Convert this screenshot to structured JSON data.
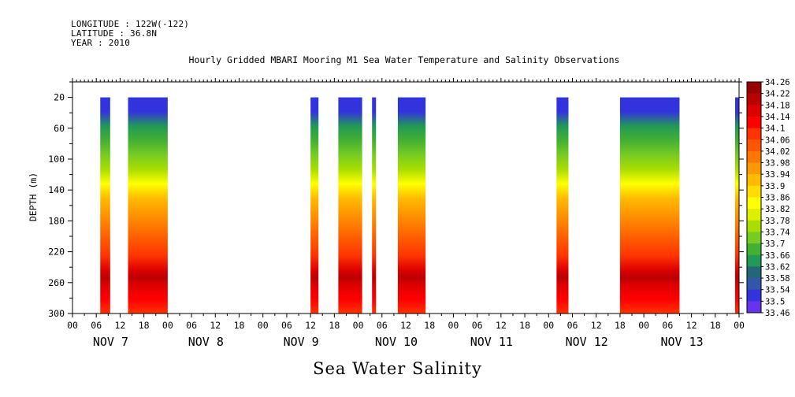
{
  "header": {
    "longitude": "LONGITUDE : 122W(-122)",
    "latitude": "LATITUDE : 36.8N",
    "year": "YEAR : 2010"
  },
  "chart_data": {
    "type": "heatmap",
    "title": "Hourly Gridded MBARI Mooring M1 Sea Water Temperature and Salinity Observations",
    "bottom_title": "Sea Water Salinity",
    "ylabel": "DEPTH (m)",
    "ylim": [
      300,
      0
    ],
    "y_ticks": [
      "20",
      "60",
      "100",
      "140",
      "180",
      "220",
      "260",
      "300"
    ],
    "x_hour_ticks": [
      "00",
      "06",
      "12",
      "18",
      "00",
      "06",
      "12",
      "18",
      "00",
      "06",
      "12",
      "18",
      "00",
      "06",
      "12",
      "18",
      "00",
      "06",
      "12",
      "18",
      "00",
      "06",
      "12",
      "18",
      "00",
      "06",
      "12",
      "18",
      "00"
    ],
    "day_labels": [
      "NOV 7",
      "NOV 8",
      "NOV 9",
      "NOV 10",
      "NOV 11",
      "NOV 12",
      "NOV 13"
    ],
    "xlim_hours": [
      0,
      168
    ],
    "colorbar": {
      "labels": [
        "34.26",
        "34.22",
        "34.18",
        "34.14",
        "34.1",
        "34.06",
        "34.02",
        "33.98",
        "33.94",
        "33.9",
        "33.86",
        "33.82",
        "33.78",
        "33.74",
        "33.7",
        "33.66",
        "33.62",
        "33.58",
        "33.54",
        "33.5",
        "33.46"
      ],
      "colors": [
        "#990000",
        "#bb0000",
        "#dd0000",
        "#ff0000",
        "#ff3300",
        "#ff5500",
        "#ff7700",
        "#ff9900",
        "#ffbb00",
        "#ffdd00",
        "#ffff00",
        "#ddf000",
        "#aadd00",
        "#77cc22",
        "#44b033",
        "#229955",
        "#226677",
        "#3355aa",
        "#3333dd",
        "#6633ee",
        "#9900ee"
      ]
    },
    "data_segments": [
      {
        "start_hour": 7,
        "end_hour": 9.5
      },
      {
        "start_hour": 14,
        "end_hour": 24
      },
      {
        "start_hour": 60,
        "end_hour": 62
      },
      {
        "start_hour": 67,
        "end_hour": 73
      },
      {
        "start_hour": 75.5,
        "end_hour": 76.5
      },
      {
        "start_hour": 82,
        "end_hour": 89
      },
      {
        "start_hour": 122,
        "end_hour": 125
      },
      {
        "start_hour": 138,
        "end_hour": 153
      },
      {
        "start_hour": 167,
        "end_hour": 168
      }
    ],
    "depth_profile": [
      {
        "depth": 20,
        "value": 33.55
      },
      {
        "depth": 40,
        "value": 33.64
      },
      {
        "depth": 60,
        "value": 33.72
      },
      {
        "depth": 80,
        "value": 33.76
      },
      {
        "depth": 100,
        "value": 33.8
      },
      {
        "depth": 120,
        "value": 33.85
      },
      {
        "depth": 140,
        "value": 33.92
      },
      {
        "depth": 160,
        "value": 33.98
      },
      {
        "depth": 180,
        "value": 34.02
      },
      {
        "depth": 200,
        "value": 34.06
      },
      {
        "depth": 220,
        "value": 34.12
      },
      {
        "depth": 240,
        "value": 34.18
      },
      {
        "depth": 250,
        "value": 34.22
      },
      {
        "depth": 260,
        "value": 34.18
      },
      {
        "depth": 280,
        "value": 34.13
      },
      {
        "depth": 300,
        "value": 34.12
      }
    ]
  }
}
